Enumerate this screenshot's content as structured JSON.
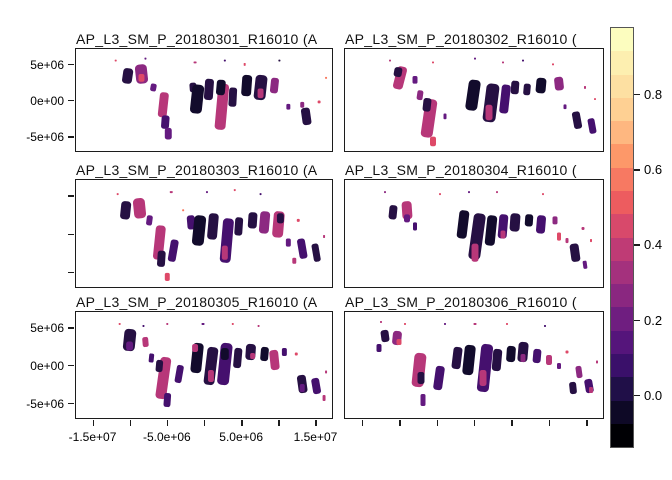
{
  "figure": {
    "background": "#ffffff"
  },
  "panels": [
    {
      "title": "AP_L3_SM_P_20180301_R16010 (A",
      "swaths": [
        [
          52,
          28,
          10,
          16,
          8,
          1
        ],
        [
          66,
          26,
          12,
          20,
          -6,
          4
        ],
        [
          66,
          30,
          6,
          8,
          0,
          6
        ],
        [
          78,
          40,
          6,
          8,
          10,
          3
        ],
        [
          88,
          58,
          9,
          26,
          6,
          5
        ],
        [
          90,
          76,
          8,
          14,
          4,
          2
        ],
        [
          93,
          88,
          7,
          12,
          0,
          3
        ],
        [
          118,
          40,
          7,
          10,
          -4,
          1
        ],
        [
          122,
          52,
          12,
          30,
          6,
          0
        ],
        [
          134,
          42,
          9,
          22,
          4,
          1
        ],
        [
          147,
          60,
          11,
          48,
          5,
          5
        ],
        [
          146,
          40,
          9,
          16,
          5,
          0
        ],
        [
          158,
          50,
          8,
          20,
          3,
          1
        ],
        [
          172,
          38,
          10,
          22,
          4,
          0
        ],
        [
          186,
          40,
          12,
          26,
          6,
          1
        ],
        [
          186,
          46,
          6,
          10,
          0,
          5
        ],
        [
          200,
          38,
          8,
          16,
          6,
          4
        ],
        [
          214,
          60,
          4,
          6,
          0,
          3
        ],
        [
          232,
          70,
          9,
          18,
          -8,
          1
        ],
        [
          228,
          58,
          4,
          6,
          0,
          4
        ],
        [
          40,
          12,
          2,
          2,
          0,
          6
        ],
        [
          70,
          10,
          2,
          2,
          0,
          3
        ],
        [
          120,
          14,
          3,
          2,
          0,
          5
        ],
        [
          150,
          12,
          2,
          2,
          0,
          2
        ],
        [
          170,
          16,
          2,
          3,
          0,
          6
        ],
        [
          205,
          12,
          2,
          2,
          0,
          1
        ],
        [
          245,
          55,
          3,
          3,
          0,
          6
        ],
        [
          252,
          30,
          2,
          2,
          0,
          7
        ]
      ]
    },
    {
      "title": "AP_L3_SM_P_20180302_R16010 (",
      "swaths": [
        [
          55,
          30,
          10,
          24,
          14,
          5
        ],
        [
          53,
          24,
          8,
          10,
          10,
          1
        ],
        [
          70,
          32,
          5,
          8,
          0,
          3
        ],
        [
          75,
          48,
          6,
          10,
          8,
          4
        ],
        [
          84,
          72,
          12,
          40,
          8,
          5
        ],
        [
          82,
          58,
          8,
          14,
          6,
          1
        ],
        [
          88,
          96,
          6,
          10,
          0,
          6
        ],
        [
          100,
          70,
          3,
          6,
          0,
          3
        ],
        [
          128,
          48,
          12,
          32,
          8,
          0
        ],
        [
          146,
          56,
          13,
          40,
          7,
          1
        ],
        [
          144,
          66,
          7,
          16,
          0,
          5
        ],
        [
          160,
          52,
          9,
          30,
          6,
          2
        ],
        [
          170,
          40,
          8,
          14,
          4,
          1
        ],
        [
          182,
          42,
          7,
          12,
          5,
          1
        ],
        [
          196,
          38,
          10,
          16,
          5,
          0
        ],
        [
          214,
          36,
          9,
          14,
          -6,
          4
        ],
        [
          220,
          60,
          3,
          5,
          0,
          3
        ],
        [
          232,
          74,
          8,
          18,
          -10,
          1
        ],
        [
          247,
          80,
          7,
          16,
          -10,
          2
        ],
        [
          45,
          12,
          2,
          2,
          0,
          5
        ],
        [
          88,
          14,
          2,
          2,
          0,
          6
        ],
        [
          130,
          10,
          2,
          2,
          0,
          3
        ],
        [
          158,
          14,
          2,
          2,
          0,
          5
        ],
        [
          178,
          12,
          2,
          2,
          0,
          2
        ],
        [
          208,
          16,
          2,
          2,
          0,
          6
        ],
        [
          240,
          40,
          2,
          3,
          0,
          5
        ],
        [
          250,
          52,
          2,
          2,
          0,
          6
        ]
      ]
    },
    {
      "title": "AP_L3_SM_P_20180303_R16010 (A",
      "swaths": [
        [
          50,
          30,
          10,
          18,
          6,
          1
        ],
        [
          64,
          28,
          12,
          20,
          -6,
          5
        ],
        [
          74,
          40,
          6,
          10,
          8,
          3
        ],
        [
          84,
          62,
          10,
          34,
          6,
          5
        ],
        [
          86,
          78,
          8,
          16,
          4,
          1
        ],
        [
          98,
          70,
          8,
          22,
          10,
          2
        ],
        [
          92,
          96,
          5,
          8,
          0,
          6
        ],
        [
          116,
          42,
          8,
          14,
          -5,
          2
        ],
        [
          124,
          50,
          12,
          30,
          6,
          0
        ],
        [
          138,
          46,
          10,
          26,
          5,
          1
        ],
        [
          152,
          60,
          11,
          44,
          5,
          2
        ],
        [
          150,
          72,
          6,
          14,
          0,
          5
        ],
        [
          164,
          46,
          8,
          18,
          4,
          1
        ],
        [
          178,
          40,
          9,
          16,
          4,
          1
        ],
        [
          190,
          42,
          10,
          22,
          5,
          4
        ],
        [
          204,
          44,
          11,
          26,
          5,
          5
        ],
        [
          206,
          38,
          7,
          10,
          0,
          1
        ],
        [
          214,
          62,
          5,
          8,
          0,
          3
        ],
        [
          228,
          68,
          8,
          20,
          -10,
          2
        ],
        [
          242,
          72,
          7,
          18,
          -10,
          1
        ],
        [
          220,
          80,
          4,
          6,
          0,
          5
        ],
        [
          42,
          14,
          2,
          2,
          0,
          6
        ],
        [
          96,
          12,
          3,
          2,
          0,
          5
        ],
        [
          132,
          12,
          2,
          2,
          0,
          3
        ],
        [
          160,
          10,
          2,
          2,
          0,
          6
        ],
        [
          186,
          14,
          2,
          2,
          0,
          2
        ],
        [
          224,
          40,
          3,
          3,
          0,
          6
        ],
        [
          250,
          56,
          2,
          3,
          0,
          5
        ],
        [
          108,
          30,
          2,
          2,
          0,
          7
        ]
      ]
    },
    {
      "title": "AP_L3_SM_P_20180304_R16010 (",
      "swaths": [
        [
          48,
          32,
          8,
          14,
          6,
          1
        ],
        [
          62,
          30,
          10,
          18,
          -4,
          5
        ],
        [
          62,
          38,
          6,
          8,
          0,
          3
        ],
        [
          70,
          46,
          4,
          8,
          0,
          2
        ],
        [
          118,
          44,
          10,
          28,
          7,
          0
        ],
        [
          132,
          56,
          12,
          46,
          8,
          1
        ],
        [
          130,
          72,
          7,
          18,
          0,
          5
        ],
        [
          146,
          50,
          10,
          30,
          6,
          0
        ],
        [
          158,
          46,
          9,
          24,
          5,
          2
        ],
        [
          158,
          54,
          5,
          8,
          0,
          5
        ],
        [
          170,
          42,
          10,
          18,
          4,
          1
        ],
        [
          184,
          40,
          8,
          12,
          4,
          0
        ],
        [
          196,
          44,
          9,
          18,
          5,
          2
        ],
        [
          210,
          40,
          5,
          8,
          0,
          4
        ],
        [
          214,
          56,
          4,
          8,
          0,
          6
        ],
        [
          230,
          72,
          9,
          18,
          -8,
          1
        ],
        [
          240,
          84,
          4,
          8,
          -8,
          3
        ],
        [
          222,
          60,
          3,
          5,
          0,
          5
        ],
        [
          40,
          12,
          2,
          2,
          0,
          4
        ],
        [
          95,
          14,
          2,
          2,
          0,
          6
        ],
        [
          124,
          12,
          2,
          2,
          0,
          3
        ],
        [
          152,
          12,
          2,
          2,
          0,
          5
        ],
        [
          198,
          14,
          2,
          2,
          0,
          6
        ],
        [
          246,
          60,
          2,
          3,
          0,
          6
        ],
        [
          238,
          48,
          3,
          3,
          0,
          5
        ]
      ]
    },
    {
      "title": "AP_L3_SM_P_20180305_R16010 (A",
      "swaths": [
        [
          54,
          28,
          12,
          22,
          6,
          1
        ],
        [
          54,
          34,
          7,
          9,
          0,
          3
        ],
        [
          70,
          30,
          6,
          10,
          -5,
          5
        ],
        [
          76,
          46,
          5,
          9,
          6,
          2
        ],
        [
          88,
          66,
          11,
          42,
          8,
          5
        ],
        [
          84,
          54,
          7,
          12,
          5,
          1
        ],
        [
          92,
          88,
          7,
          14,
          4,
          2
        ],
        [
          104,
          62,
          7,
          18,
          10,
          2
        ],
        [
          122,
          46,
          11,
          30,
          6,
          0
        ],
        [
          120,
          36,
          6,
          8,
          0,
          5
        ],
        [
          136,
          54,
          11,
          38,
          7,
          1
        ],
        [
          136,
          64,
          6,
          12,
          0,
          5
        ],
        [
          150,
          52,
          12,
          42,
          6,
          2
        ],
        [
          150,
          42,
          8,
          12,
          0,
          0
        ],
        [
          163,
          46,
          8,
          20,
          5,
          1
        ],
        [
          176,
          40,
          10,
          16,
          4,
          1
        ],
        [
          178,
          44,
          5,
          6,
          0,
          5
        ],
        [
          190,
          42,
          8,
          14,
          5,
          0
        ],
        [
          200,
          48,
          9,
          20,
          -6,
          5
        ],
        [
          210,
          40,
          5,
          8,
          0,
          2
        ],
        [
          228,
          72,
          9,
          18,
          -8,
          1
        ],
        [
          228,
          76,
          5,
          8,
          0,
          3
        ],
        [
          242,
          74,
          8,
          16,
          -10,
          2
        ],
        [
          250,
          86,
          3,
          6,
          0,
          5
        ],
        [
          44,
          12,
          2,
          2,
          0,
          6
        ],
        [
          92,
          12,
          2,
          2,
          0,
          5
        ],
        [
          128,
          12,
          3,
          2,
          0,
          3
        ],
        [
          158,
          12,
          2,
          2,
          0,
          6
        ],
        [
          184,
          14,
          2,
          2,
          0,
          5
        ],
        [
          222,
          42,
          3,
          3,
          0,
          6
        ],
        [
          252,
          60,
          2,
          3,
          0,
          5
        ],
        [
          68,
          14,
          2,
          2,
          0,
          2
        ]
      ]
    },
    {
      "title": "AP_L3_SM_P_20180306_R16010 (",
      "swaths": [
        [
          40,
          24,
          8,
          12,
          -8,
          1
        ],
        [
          52,
          26,
          9,
          14,
          6,
          4
        ],
        [
          54,
          30,
          5,
          6,
          0,
          6
        ],
        [
          34,
          36,
          5,
          8,
          0,
          2
        ],
        [
          74,
          58,
          12,
          34,
          6,
          5
        ],
        [
          76,
          66,
          7,
          12,
          0,
          1
        ],
        [
          78,
          88,
          5,
          12,
          0,
          3
        ],
        [
          94,
          66,
          9,
          24,
          8,
          2
        ],
        [
          112,
          46,
          9,
          22,
          7,
          1
        ],
        [
          124,
          48,
          11,
          30,
          6,
          0
        ],
        [
          140,
          56,
          12,
          48,
          6,
          2
        ],
        [
          138,
          66,
          7,
          16,
          0,
          5
        ],
        [
          152,
          48,
          9,
          22,
          5,
          1
        ],
        [
          166,
          42,
          9,
          16,
          4,
          0
        ],
        [
          178,
          40,
          10,
          20,
          5,
          1
        ],
        [
          178,
          46,
          5,
          8,
          0,
          4
        ],
        [
          192,
          44,
          8,
          14,
          5,
          2
        ],
        [
          204,
          48,
          6,
          10,
          0,
          5
        ],
        [
          214,
          54,
          4,
          6,
          0,
          3
        ],
        [
          234,
          60,
          6,
          12,
          -8,
          4
        ],
        [
          228,
          76,
          7,
          12,
          -6,
          1
        ],
        [
          244,
          74,
          8,
          14,
          -10,
          2
        ],
        [
          246,
          78,
          4,
          6,
          0,
          5
        ],
        [
          36,
          10,
          2,
          2,
          0,
          5
        ],
        [
          60,
          12,
          2,
          2,
          0,
          6
        ],
        [
          100,
          12,
          2,
          2,
          0,
          3
        ],
        [
          130,
          12,
          3,
          2,
          0,
          5
        ],
        [
          162,
          12,
          2,
          2,
          0,
          6
        ],
        [
          200,
          14,
          2,
          2,
          0,
          2
        ],
        [
          222,
          40,
          3,
          3,
          0,
          6
        ],
        [
          252,
          50,
          2,
          3,
          0,
          5
        ]
      ]
    }
  ],
  "axis": {
    "y_tick_labels": [
      "5e+06",
      "0e+00",
      "-5e+06"
    ],
    "x_tick_labels": [
      "-1.5e+07",
      "-5.0e+06",
      "5.0e+06",
      "1.5e+07"
    ]
  },
  "swath_palette": [
    "#120b2c",
    "#261043",
    "#45106e",
    "#641a80",
    "#8c2981",
    "#b73779",
    "#de4968",
    "#f8765c"
  ],
  "colorbar": {
    "tick_labels": [
      "0.8",
      "0.6",
      "0.4",
      "0.2",
      "0.0"
    ],
    "band_colors": [
      "#000004",
      "#0e0926",
      "#200f48",
      "#3a106a",
      "#55157b",
      "#6f1e80",
      "#8a2780",
      "#a4317d",
      "#bf3b75",
      "#d8496b",
      "#ed5c5f",
      "#f77962",
      "#fd9869",
      "#feb780",
      "#fed093",
      "#fde0a2",
      "#fdefb0",
      "#fcfdbf"
    ]
  },
  "chart_data": {
    "type": "heatmap",
    "subtype": "satellite-swath-map-grid",
    "layout": "2 columns x 3 rows of global equal-area map panels sharing axes, discrete colorbar at right",
    "panel_titles": [
      "AP_L3_SM_P_20180301_R16010 (",
      "AP_L3_SM_P_20180302_R16010 (",
      "AP_L3_SM_P_20180303_R16010 (",
      "AP_L3_SM_P_20180304_R16010 (",
      "AP_L3_SM_P_20180305_R16010 (",
      "AP_L3_SM_P_20180306_R16010 ("
    ],
    "x_tick_labels": [
      "-1.5e+07",
      "-5.0e+06",
      "5.0e+06",
      "1.5e+07"
    ],
    "y_tick_labels": [
      "5e+06",
      "0e+00",
      "-5e+06"
    ],
    "x_range_approx": [
      -17500000,
      17500000
    ],
    "y_range_approx": [
      -7300000,
      7300000
    ],
    "colorbar": {
      "ticks": [
        0.0,
        0.2,
        0.4,
        0.6,
        0.8
      ],
      "colormap": "magma",
      "n_bands": 18,
      "orientation": "vertical-right"
    },
    "grid": false,
    "legend": "colorbar"
  }
}
